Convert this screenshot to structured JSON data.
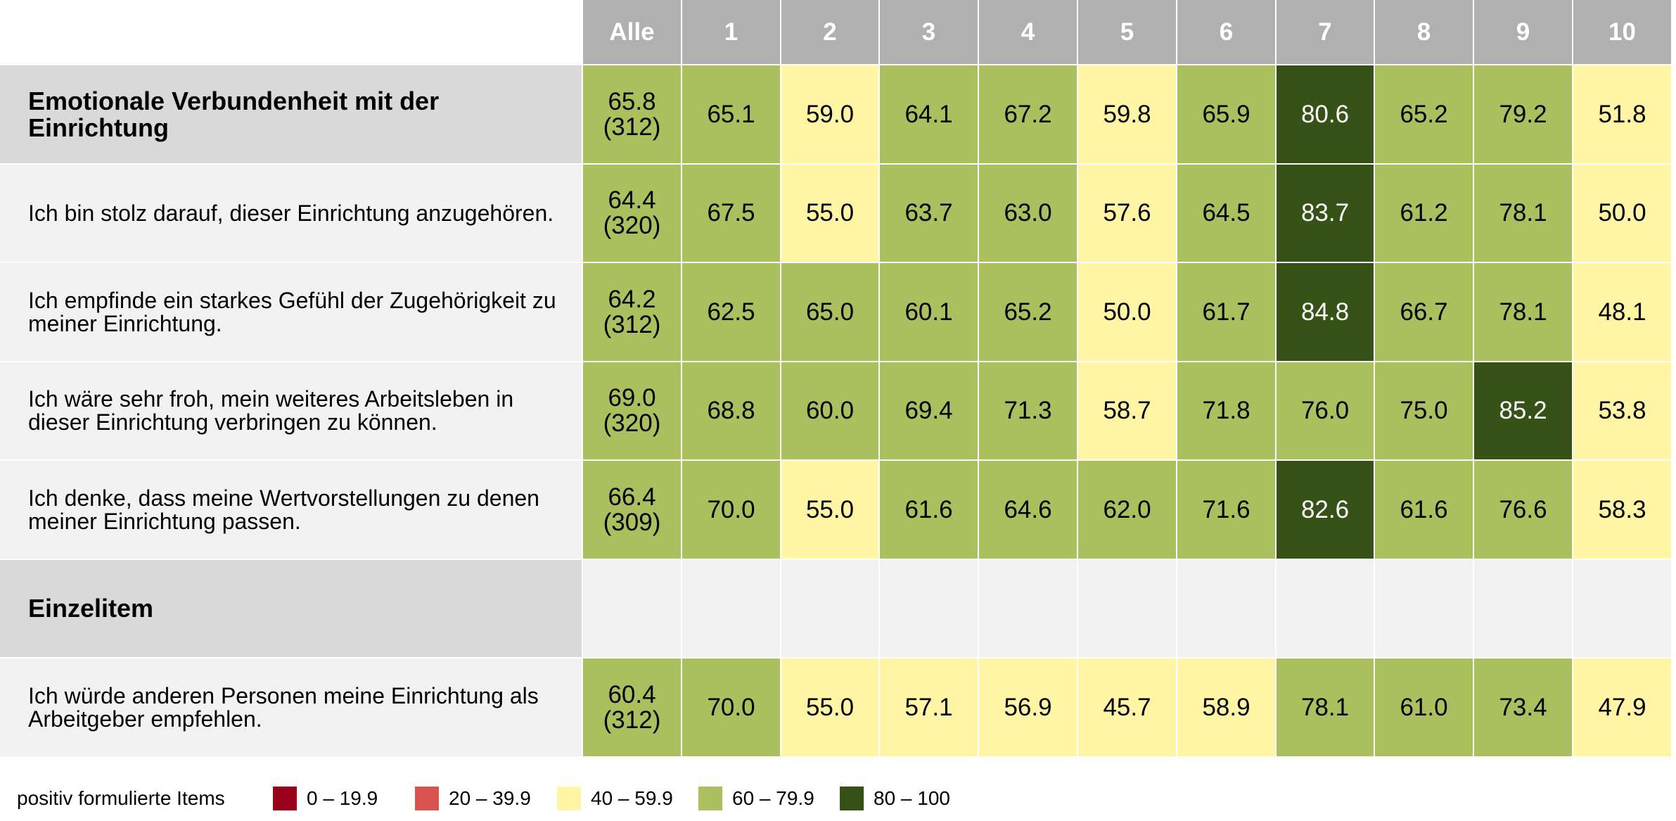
{
  "chart_data": {
    "type": "table",
    "columns": [
      "Alle",
      "1",
      "2",
      "3",
      "4",
      "5",
      "6",
      "7",
      "8",
      "9",
      "10"
    ],
    "rows": [
      {
        "label": "Emotionale Verbundenheit mit der Einrichtung",
        "kind": "section",
        "values": [
          65.8,
          65.1,
          59.0,
          64.1,
          67.2,
          59.8,
          65.9,
          80.6,
          65.2,
          79.2,
          51.8
        ],
        "n": "(312)"
      },
      {
        "label": "Ich bin stolz darauf, dieser Einrichtung anzugehören.",
        "kind": "item",
        "values": [
          64.4,
          67.5,
          55.0,
          63.7,
          63.0,
          57.6,
          64.5,
          83.7,
          61.2,
          78.1,
          50.0
        ],
        "n": "(320)"
      },
      {
        "label": "Ich empfinde ein starkes Gefühl der Zugehörigkeit zu meiner Einrichtung.",
        "kind": "item",
        "values": [
          64.2,
          62.5,
          65.0,
          60.1,
          65.2,
          50.0,
          61.7,
          84.8,
          66.7,
          78.1,
          48.1
        ],
        "n": "(312)"
      },
      {
        "label": "Ich wäre sehr froh, mein weiteres Arbeitsleben in dieser Einrichtung verbringen zu können.",
        "kind": "item",
        "values": [
          69.0,
          68.8,
          60.0,
          69.4,
          71.3,
          58.7,
          71.8,
          76.0,
          75.0,
          85.2,
          53.8
        ],
        "n": "(320)"
      },
      {
        "label": "Ich denke, dass meine Wertvorstellungen zu denen meiner Einrichtung passen.",
        "kind": "item",
        "values": [
          66.4,
          70.0,
          55.0,
          61.6,
          64.6,
          62.0,
          71.6,
          82.6,
          61.6,
          76.6,
          58.3
        ],
        "n": "(309)"
      },
      {
        "label": "Einzelitem",
        "kind": "section",
        "values": [],
        "n": ""
      },
      {
        "label": "Ich würde anderen Personen meine Einrichtung als Arbeitgeber empfehlen.",
        "kind": "item",
        "values": [
          60.4,
          70.0,
          55.0,
          57.1,
          56.9,
          45.7,
          58.9,
          78.1,
          61.0,
          73.4,
          47.9
        ],
        "n": "(312)"
      }
    ],
    "legend": {
      "title": "positiv formulierte Items",
      "bins": [
        {
          "label": "0 – 19.9",
          "min": 0,
          "max": 19.9,
          "color": "#99001a"
        },
        {
          "label": "20 – 39.9",
          "min": 20,
          "max": 39.9,
          "color": "#d9534f"
        },
        {
          "label": "40 – 59.9",
          "min": 40,
          "max": 59.9,
          "color": "#fff5a5"
        },
        {
          "label": "60 – 79.9",
          "min": 60,
          "max": 79.9,
          "color": "#aabf5e"
        },
        {
          "label": "80 – 100",
          "min": 80,
          "max": 100,
          "color": "#375216"
        }
      ]
    }
  }
}
